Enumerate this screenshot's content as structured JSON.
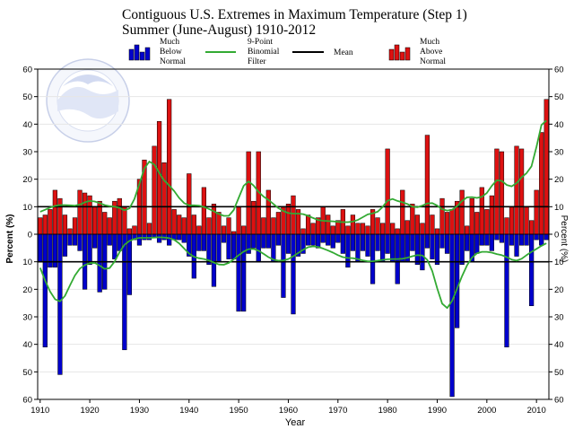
{
  "chart_data": {
    "type": "bar",
    "title": "Contiguous U.S. Extremes in Maximum Temperature (Step 1)",
    "subtitle": "Summer (June-August) 1910-2012",
    "xlabel": "Year",
    "ylabel": "Percent (%)",
    "ylabel_right": "Percent (%)",
    "x_ticks": [
      "1910",
      "1920",
      "1930",
      "1940",
      "1950",
      "1960",
      "1970",
      "1980",
      "1990",
      "2000",
      "2010"
    ],
    "x_tick_values": [
      1910,
      1920,
      1930,
      1940,
      1950,
      1960,
      1970,
      1980,
      1990,
      2000,
      2010
    ],
    "y_ticks": [
      "60",
      "50",
      "40",
      "30",
      "20",
      "10",
      "0",
      "10",
      "20",
      "30",
      "40",
      "50",
      "60"
    ],
    "y_tick_values": [
      60,
      50,
      40,
      30,
      20,
      10,
      0,
      -10,
      -20,
      -30,
      -40,
      -50,
      -60
    ],
    "ylim": [
      -60,
      60
    ],
    "xlim": [
      1909.5,
      2012.5
    ],
    "mean_values": {
      "above": 10,
      "below": -10
    },
    "legend": [
      {
        "label": "Much Below Normal",
        "lines": [
          "Much",
          "Below",
          "Normal"
        ],
        "color": "#0000cc",
        "kind": "bars"
      },
      {
        "label": "9-Point Binomial Filter",
        "lines": [
          "9-Point",
          "Binomial",
          "Filter"
        ],
        "color": "#33aa33",
        "kind": "line"
      },
      {
        "label": "Mean",
        "lines": [
          "Mean"
        ],
        "color": "#000000",
        "kind": "line"
      },
      {
        "label": "Much Above Normal",
        "lines": [
          "Much",
          "Above",
          "Normal"
        ],
        "color": "#cc0000",
        "kind": "bars"
      }
    ],
    "colors": {
      "above": "#dd1111",
      "below": "#0000cc",
      "filter": "#33aa33",
      "mean": "#000000",
      "grid": "#e6e6e6"
    },
    "grid": true,
    "legend_position": "top",
    "x": [
      1910,
      1911,
      1912,
      1913,
      1914,
      1915,
      1916,
      1917,
      1918,
      1919,
      1920,
      1921,
      1922,
      1923,
      1924,
      1925,
      1926,
      1927,
      1928,
      1929,
      1930,
      1931,
      1932,
      1933,
      1934,
      1935,
      1936,
      1937,
      1938,
      1939,
      1940,
      1941,
      1942,
      1943,
      1944,
      1945,
      1946,
      1947,
      1948,
      1949,
      1950,
      1951,
      1952,
      1953,
      1954,
      1955,
      1956,
      1957,
      1958,
      1959,
      1960,
      1961,
      1962,
      1963,
      1964,
      1965,
      1966,
      1967,
      1968,
      1969,
      1970,
      1971,
      1972,
      1973,
      1974,
      1975,
      1976,
      1977,
      1978,
      1979,
      1980,
      1981,
      1982,
      1983,
      1984,
      1985,
      1986,
      1987,
      1988,
      1989,
      1990,
      1991,
      1992,
      1993,
      1994,
      1995,
      1996,
      1997,
      1998,
      1999,
      2000,
      2001,
      2002,
      2003,
      2004,
      2005,
      2006,
      2007,
      2008,
      2009,
      2010,
      2011,
      2012
    ],
    "series": [
      {
        "name": "Much Above Normal",
        "values": [
          6,
          7,
          9,
          16,
          13,
          7,
          2,
          6,
          16,
          15,
          14,
          10,
          12,
          8,
          6,
          12,
          13,
          10,
          2,
          3,
          20,
          27,
          4,
          32,
          41,
          26,
          49,
          9,
          7,
          6,
          22,
          7,
          3,
          17,
          6,
          11,
          8,
          3,
          6,
          1,
          10,
          3,
          30,
          12,
          30,
          6,
          16,
          6,
          8,
          10,
          11,
          14,
          9,
          2,
          7,
          4,
          6,
          10,
          7,
          3,
          5,
          9,
          3,
          7,
          4,
          4,
          3,
          9,
          6,
          4,
          31,
          4,
          2,
          16,
          5,
          11,
          7,
          4,
          36,
          7,
          2,
          13,
          8,
          9,
          12,
          16,
          3,
          13,
          8,
          17,
          9,
          14,
          31,
          30,
          6,
          10,
          32,
          31,
          10,
          5,
          16,
          37,
          49
        ]
      },
      {
        "name": "Much Below Normal",
        "values": [
          -10,
          -41,
          -12,
          -12,
          -51,
          -8,
          -4,
          -4,
          -6,
          -20,
          -11,
          -5,
          -21,
          -20,
          -4,
          -9,
          -6,
          -42,
          -22,
          -2,
          -4,
          -2,
          -2,
          -1,
          -3,
          -2,
          -4,
          -2,
          -2,
          -3,
          -8,
          -16,
          -6,
          -6,
          -11,
          -19,
          -10,
          -3,
          -9,
          -9,
          -28,
          -28,
          -7,
          -5,
          -10,
          -5,
          -5,
          -10,
          -4,
          -23,
          -7,
          -29,
          -8,
          -7,
          -4,
          -4,
          -5,
          -3,
          -4,
          -5,
          -3,
          -7,
          -12,
          -6,
          -10,
          -6,
          -8,
          -18,
          -6,
          -10,
          -7,
          -10,
          -18,
          -10,
          -10,
          -6,
          -11,
          -13,
          -5,
          -9,
          -11,
          -5,
          -7,
          -59,
          -34,
          -11,
          -6,
          -10,
          -7,
          -4,
          -4,
          -6,
          -2,
          -3,
          -41,
          -4,
          -8,
          -4,
          -4,
          -26,
          -2,
          -4,
          -2
        ]
      },
      {
        "name": "9-Point Binomial Filter (Much Above Normal)",
        "values": [
          8.2,
          8.9,
          9.7,
          10.3,
          10.6,
          10.6,
          10.5,
          10.4,
          10.8,
          11.6,
          12.1,
          11.9,
          11.3,
          10.6,
          10.2,
          10.0,
          9.6,
          8.7,
          9.4,
          12.8,
          18.3,
          23.9,
          26.4,
          25.3,
          22.3,
          19.5,
          17.7,
          15.7,
          13.2,
          11.3,
          10.5,
          10.5,
          10.4,
          9.9,
          9.2,
          8.3,
          7.4,
          6.7,
          6.7,
          8.8,
          13.2,
          17.6,
          19.2,
          17.7,
          15.4,
          13.7,
          12.5,
          11.0,
          9.5,
          8.4,
          7.7,
          7.5,
          7.5,
          7.3,
          6.7,
          5.9,
          5.2,
          4.9,
          4.8,
          4.7,
          4.5,
          4.4,
          4.4,
          4.6,
          5.2,
          6.2,
          7.2,
          7.6,
          8.2,
          9.9,
          12.2,
          12.8,
          12.1,
          11.6,
          11.0,
          10.0,
          9.8,
          10.4,
          11.2,
          11.3,
          10.4,
          9.1,
          8.6,
          8.9,
          10.2,
          12.1,
          13.4,
          13.5,
          13.2,
          13.6,
          15.0,
          17.6,
          19.6,
          19.4,
          17.9,
          17.4,
          18.6,
          20.7,
          22.2,
          24.7,
          31.8,
          39.7,
          41.3
        ]
      },
      {
        "name": "9-Point Binomial Filter (Much Below Normal)",
        "values": [
          -12.2,
          -16.8,
          -20.8,
          -23.6,
          -24.4,
          -22.4,
          -18.6,
          -15.0,
          -12.5,
          -11.2,
          -10.5,
          -10.4,
          -11.4,
          -12.6,
          -12.3,
          -9.9,
          -6.5,
          -3.8,
          -2.4,
          -1.7,
          -1.3,
          -1.3,
          -1.3,
          -1.2,
          -1.1,
          -1.2,
          -1.4,
          -2.0,
          -3.3,
          -5.2,
          -7.0,
          -8.2,
          -8.7,
          -9.0,
          -9.5,
          -10.3,
          -11.0,
          -11.1,
          -10.4,
          -9.1,
          -7.6,
          -6.3,
          -5.4,
          -5.3,
          -6.0,
          -7.1,
          -8.3,
          -9.2,
          -9.6,
          -9.5,
          -9.0,
          -8.0,
          -6.8,
          -5.6,
          -4.7,
          -4.4,
          -4.6,
          -5.2,
          -5.9,
          -6.7,
          -7.6,
          -8.3,
          -8.6,
          -8.7,
          -9.0,
          -9.5,
          -9.8,
          -9.8,
          -9.6,
          -9.3,
          -9.1,
          -9.0,
          -9.0,
          -8.9,
          -8.5,
          -8.0,
          -7.6,
          -7.7,
          -9.3,
          -13.4,
          -19.7,
          -25.2,
          -26.8,
          -24.2,
          -19.8,
          -15.2,
          -11.3,
          -8.5,
          -6.9,
          -6.4,
          -6.4,
          -6.7,
          -7.2,
          -7.6,
          -8.3,
          -9.2,
          -9.6,
          -8.9,
          -7.6,
          -6.4,
          -5.3,
          -4.2,
          -3.3
        ]
      }
    ]
  }
}
